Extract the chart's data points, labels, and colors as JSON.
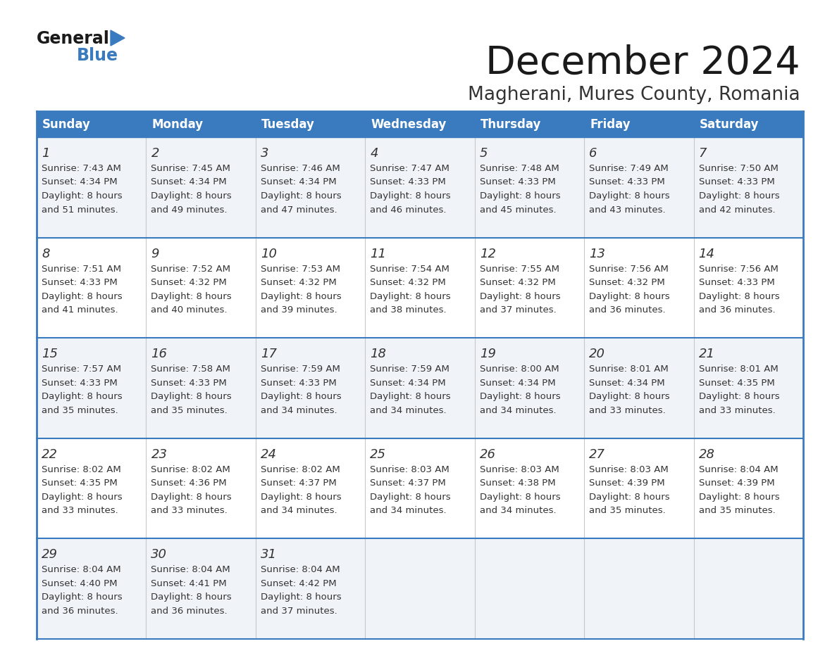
{
  "title": "December 2024",
  "subtitle": "Magherani, Mures County, Romania",
  "header_bg": "#3a7bbf",
  "header_text_color": "#ffffff",
  "cell_bg_light": "#f0f4f8",
  "cell_bg_white": "#ffffff",
  "separator_color": "#3a7bbf",
  "text_color": "#333333",
  "day_headers": [
    "Sunday",
    "Monday",
    "Tuesday",
    "Wednesday",
    "Thursday",
    "Friday",
    "Saturday"
  ],
  "days": [
    {
      "day": 1,
      "col": 0,
      "row": 0,
      "sunrise": "7:43 AM",
      "sunset": "4:34 PM",
      "daylight_h": "8 hours",
      "daylight_m": "51 minutes."
    },
    {
      "day": 2,
      "col": 1,
      "row": 0,
      "sunrise": "7:45 AM",
      "sunset": "4:34 PM",
      "daylight_h": "8 hours",
      "daylight_m": "49 minutes."
    },
    {
      "day": 3,
      "col": 2,
      "row": 0,
      "sunrise": "7:46 AM",
      "sunset": "4:34 PM",
      "daylight_h": "8 hours",
      "daylight_m": "47 minutes."
    },
    {
      "day": 4,
      "col": 3,
      "row": 0,
      "sunrise": "7:47 AM",
      "sunset": "4:33 PM",
      "daylight_h": "8 hours",
      "daylight_m": "46 minutes."
    },
    {
      "day": 5,
      "col": 4,
      "row": 0,
      "sunrise": "7:48 AM",
      "sunset": "4:33 PM",
      "daylight_h": "8 hours",
      "daylight_m": "45 minutes."
    },
    {
      "day": 6,
      "col": 5,
      "row": 0,
      "sunrise": "7:49 AM",
      "sunset": "4:33 PM",
      "daylight_h": "8 hours",
      "daylight_m": "43 minutes."
    },
    {
      "day": 7,
      "col": 6,
      "row": 0,
      "sunrise": "7:50 AM",
      "sunset": "4:33 PM",
      "daylight_h": "8 hours",
      "daylight_m": "42 minutes."
    },
    {
      "day": 8,
      "col": 0,
      "row": 1,
      "sunrise": "7:51 AM",
      "sunset": "4:33 PM",
      "daylight_h": "8 hours",
      "daylight_m": "41 minutes."
    },
    {
      "day": 9,
      "col": 1,
      "row": 1,
      "sunrise": "7:52 AM",
      "sunset": "4:32 PM",
      "daylight_h": "8 hours",
      "daylight_m": "40 minutes."
    },
    {
      "day": 10,
      "col": 2,
      "row": 1,
      "sunrise": "7:53 AM",
      "sunset": "4:32 PM",
      "daylight_h": "8 hours",
      "daylight_m": "39 minutes."
    },
    {
      "day": 11,
      "col": 3,
      "row": 1,
      "sunrise": "7:54 AM",
      "sunset": "4:32 PM",
      "daylight_h": "8 hours",
      "daylight_m": "38 minutes."
    },
    {
      "day": 12,
      "col": 4,
      "row": 1,
      "sunrise": "7:55 AM",
      "sunset": "4:32 PM",
      "daylight_h": "8 hours",
      "daylight_m": "37 minutes."
    },
    {
      "day": 13,
      "col": 5,
      "row": 1,
      "sunrise": "7:56 AM",
      "sunset": "4:32 PM",
      "daylight_h": "8 hours",
      "daylight_m": "36 minutes."
    },
    {
      "day": 14,
      "col": 6,
      "row": 1,
      "sunrise": "7:56 AM",
      "sunset": "4:33 PM",
      "daylight_h": "8 hours",
      "daylight_m": "36 minutes."
    },
    {
      "day": 15,
      "col": 0,
      "row": 2,
      "sunrise": "7:57 AM",
      "sunset": "4:33 PM",
      "daylight_h": "8 hours",
      "daylight_m": "35 minutes."
    },
    {
      "day": 16,
      "col": 1,
      "row": 2,
      "sunrise": "7:58 AM",
      "sunset": "4:33 PM",
      "daylight_h": "8 hours",
      "daylight_m": "35 minutes."
    },
    {
      "day": 17,
      "col": 2,
      "row": 2,
      "sunrise": "7:59 AM",
      "sunset": "4:33 PM",
      "daylight_h": "8 hours",
      "daylight_m": "34 minutes."
    },
    {
      "day": 18,
      "col": 3,
      "row": 2,
      "sunrise": "7:59 AM",
      "sunset": "4:34 PM",
      "daylight_h": "8 hours",
      "daylight_m": "34 minutes."
    },
    {
      "day": 19,
      "col": 4,
      "row": 2,
      "sunrise": "8:00 AM",
      "sunset": "4:34 PM",
      "daylight_h": "8 hours",
      "daylight_m": "34 minutes."
    },
    {
      "day": 20,
      "col": 5,
      "row": 2,
      "sunrise": "8:01 AM",
      "sunset": "4:34 PM",
      "daylight_h": "8 hours",
      "daylight_m": "33 minutes."
    },
    {
      "day": 21,
      "col": 6,
      "row": 2,
      "sunrise": "8:01 AM",
      "sunset": "4:35 PM",
      "daylight_h": "8 hours",
      "daylight_m": "33 minutes."
    },
    {
      "day": 22,
      "col": 0,
      "row": 3,
      "sunrise": "8:02 AM",
      "sunset": "4:35 PM",
      "daylight_h": "8 hours",
      "daylight_m": "33 minutes."
    },
    {
      "day": 23,
      "col": 1,
      "row": 3,
      "sunrise": "8:02 AM",
      "sunset": "4:36 PM",
      "daylight_h": "8 hours",
      "daylight_m": "33 minutes."
    },
    {
      "day": 24,
      "col": 2,
      "row": 3,
      "sunrise": "8:02 AM",
      "sunset": "4:37 PM",
      "daylight_h": "8 hours",
      "daylight_m": "34 minutes."
    },
    {
      "day": 25,
      "col": 3,
      "row": 3,
      "sunrise": "8:03 AM",
      "sunset": "4:37 PM",
      "daylight_h": "8 hours",
      "daylight_m": "34 minutes."
    },
    {
      "day": 26,
      "col": 4,
      "row": 3,
      "sunrise": "8:03 AM",
      "sunset": "4:38 PM",
      "daylight_h": "8 hours",
      "daylight_m": "34 minutes."
    },
    {
      "day": 27,
      "col": 5,
      "row": 3,
      "sunrise": "8:03 AM",
      "sunset": "4:39 PM",
      "daylight_h": "8 hours",
      "daylight_m": "35 minutes."
    },
    {
      "day": 28,
      "col": 6,
      "row": 3,
      "sunrise": "8:04 AM",
      "sunset": "4:39 PM",
      "daylight_h": "8 hours",
      "daylight_m": "35 minutes."
    },
    {
      "day": 29,
      "col": 0,
      "row": 4,
      "sunrise": "8:04 AM",
      "sunset": "4:40 PM",
      "daylight_h": "8 hours",
      "daylight_m": "36 minutes."
    },
    {
      "day": 30,
      "col": 1,
      "row": 4,
      "sunrise": "8:04 AM",
      "sunset": "4:41 PM",
      "daylight_h": "8 hours",
      "daylight_m": "36 minutes."
    },
    {
      "day": 31,
      "col": 2,
      "row": 4,
      "sunrise": "8:04 AM",
      "sunset": "4:42 PM",
      "daylight_h": "8 hours",
      "daylight_m": "37 minutes."
    }
  ]
}
